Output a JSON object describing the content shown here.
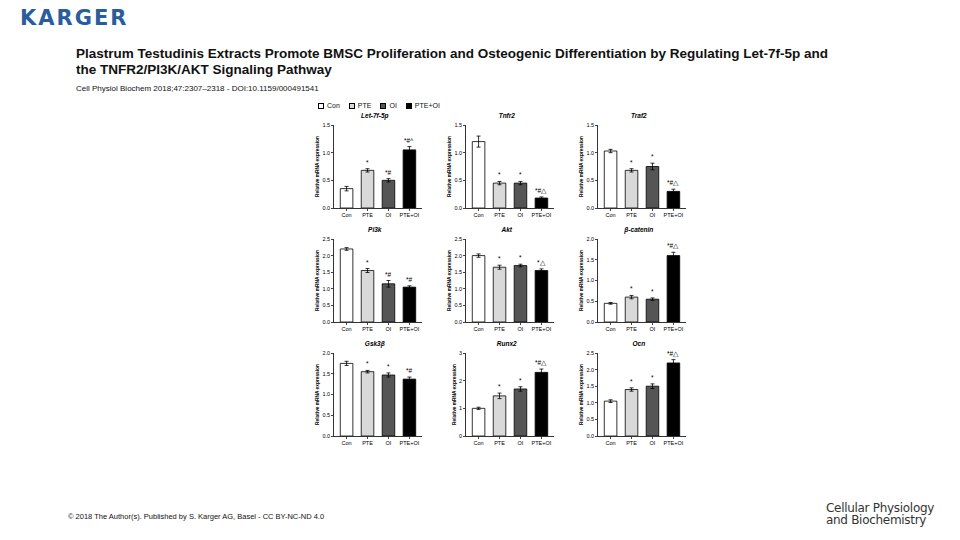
{
  "header": {
    "logo": "KARGER",
    "title": "Plastrum Testudinis Extracts Promote BMSC Proliferation and Osteogenic Differentiation by Regulating Let-7f-5p and the TNFR2/PI3K/AKT Signaling Pathway",
    "citation": "Cell Physiol Biochem 2018;47:2307–2318 - DOI:10.1159/000491541"
  },
  "legend_items": [
    {
      "name": "Con",
      "color": "#ffffff"
    },
    {
      "name": "PTE",
      "color": "#d9d9d9"
    },
    {
      "name": "OI",
      "color": "#555555"
    },
    {
      "name": "PTE+OI",
      "color": "#000000"
    }
  ],
  "chart_data": [
    {
      "type": "bar",
      "title": "Let-7f-5p",
      "ylabel": "Relative mRNA expression",
      "categories": [
        "Con",
        "PTE",
        "OI",
        "PTE+OI"
      ],
      "values": [
        0.35,
        0.68,
        0.5,
        1.05
      ],
      "errors": [
        0.04,
        0.03,
        0.03,
        0.06
      ],
      "annotations": [
        null,
        "*",
        "*#",
        "*#^"
      ],
      "colors": [
        "#ffffff",
        "#d9d9d9",
        "#555555",
        "#000000"
      ],
      "ylim": [
        0,
        1.5
      ],
      "yticks": [
        {
          "value": 0,
          "label": "0.0"
        },
        0.5,
        {
          "value": 1,
          "label": "1.0"
        },
        1.5
      ]
    },
    {
      "type": "bar",
      "title": "Tnfr2",
      "ylabel": "Relative mRNA expression",
      "categories": [
        "Con",
        "PTE",
        "OI",
        "PTE+OI"
      ],
      "values": [
        1.2,
        0.45,
        0.45,
        0.18
      ],
      "errors": [
        0.1,
        0.03,
        0.03,
        0.02
      ],
      "annotations": [
        null,
        "*",
        "*",
        "*#△"
      ],
      "colors": [
        "#ffffff",
        "#d9d9d9",
        "#555555",
        "#000000"
      ],
      "ylim": [
        0,
        1.5
      ],
      "yticks": [
        {
          "value": 0,
          "label": "0.0"
        },
        0.5,
        {
          "value": 1,
          "label": "1.0"
        },
        1.5
      ]
    },
    {
      "type": "bar",
      "title": "Traf2",
      "ylabel": "Relative mRNA expression",
      "categories": [
        "Con",
        "PTE",
        "OI",
        "PTE+OI"
      ],
      "values": [
        1.03,
        0.68,
        0.75,
        0.3
      ],
      "errors": [
        0.03,
        0.03,
        0.06,
        0.04
      ],
      "annotations": [
        null,
        "*",
        "*",
        "*#△"
      ],
      "colors": [
        "#ffffff",
        "#d9d9d9",
        "#555555",
        "#000000"
      ],
      "ylim": [
        0,
        1.5
      ],
      "yticks": [
        {
          "value": 0,
          "label": "0.0"
        },
        0.5,
        {
          "value": 1,
          "label": "1.0"
        },
        1.5
      ]
    },
    {
      "type": "bar",
      "title": "Pi3k",
      "ylabel": "Relative mRNA expression",
      "categories": [
        "Con",
        "PTE",
        "OI",
        "PTE+OI"
      ],
      "values": [
        2.2,
        1.55,
        1.15,
        1.05
      ],
      "errors": [
        0.04,
        0.06,
        0.1,
        0.04
      ],
      "annotations": [
        null,
        "*",
        "*#",
        "*#"
      ],
      "colors": [
        "#ffffff",
        "#d9d9d9",
        "#555555",
        "#000000"
      ],
      "ylim": [
        0,
        2.5
      ],
      "yticks": [
        {
          "value": 0,
          "label": "0.0"
        },
        0.5,
        {
          "value": 1,
          "label": "1.0"
        },
        1.5,
        {
          "value": 2,
          "label": "2.0"
        },
        2.5
      ]
    },
    {
      "type": "bar",
      "title": "Akt",
      "ylabel": "Relative mRNA expression",
      "categories": [
        "Con",
        "PTE",
        "OI",
        "PTE+OI"
      ],
      "values": [
        2.0,
        1.65,
        1.7,
        1.55
      ],
      "errors": [
        0.05,
        0.06,
        0.04,
        0.05
      ],
      "annotations": [
        null,
        "*",
        "*",
        "*△"
      ],
      "colors": [
        "#ffffff",
        "#d9d9d9",
        "#555555",
        "#000000"
      ],
      "ylim": [
        0,
        2.5
      ],
      "yticks": [
        {
          "value": 0,
          "label": "0.0"
        },
        0.5,
        {
          "value": 1,
          "label": "1.0"
        },
        1.5,
        {
          "value": 2,
          "label": "2.0"
        },
        2.5
      ]
    },
    {
      "type": "bar",
      "title": "β-catenin",
      "ylabel": "Relative mRNA expression",
      "categories": [
        "Con",
        "PTE",
        "OI",
        "PTE+OI"
      ],
      "values": [
        0.45,
        0.6,
        0.55,
        1.6
      ],
      "errors": [
        0.02,
        0.04,
        0.03,
        0.08
      ],
      "annotations": [
        null,
        "*",
        "*",
        "*#△"
      ],
      "colors": [
        "#ffffff",
        "#d9d9d9",
        "#555555",
        "#000000"
      ],
      "ylim": [
        0,
        2
      ],
      "yticks": [
        {
          "value": 0,
          "label": "0.0"
        },
        0.5,
        {
          "value": 1,
          "label": "1.0"
        },
        1.5,
        {
          "value": 2,
          "label": "2.0"
        }
      ]
    },
    {
      "type": "bar",
      "title": "Gsk3β",
      "ylabel": "Relative mRNA expression",
      "categories": [
        "Con",
        "PTE",
        "OI",
        "PTE+OI"
      ],
      "values": [
        1.75,
        1.55,
        1.47,
        1.37
      ],
      "errors": [
        0.05,
        0.03,
        0.05,
        0.05
      ],
      "annotations": [
        null,
        "*",
        "*",
        "*#"
      ],
      "colors": [
        "#ffffff",
        "#d9d9d9",
        "#555555",
        "#000000"
      ],
      "ylim": [
        0,
        2
      ],
      "yticks": [
        {
          "value": 0,
          "label": "0.0"
        },
        0.5,
        {
          "value": 1,
          "label": "1.0"
        },
        1.5,
        {
          "value": 2,
          "label": "2.0"
        }
      ]
    },
    {
      "type": "bar",
      "title": "Runx2",
      "ylabel": "Relative mRNA expression",
      "categories": [
        "Con",
        "PTE",
        "OI",
        "PTE+OI"
      ],
      "values": [
        1.0,
        1.45,
        1.7,
        2.3
      ],
      "errors": [
        0.04,
        0.1,
        0.08,
        0.12
      ],
      "annotations": [
        null,
        "*",
        "*",
        "*#△"
      ],
      "colors": [
        "#ffffff",
        "#d9d9d9",
        "#555555",
        "#000000"
      ],
      "ylim": [
        0,
        3
      ],
      "yticks": [
        0,
        1,
        2,
        3
      ]
    },
    {
      "type": "bar",
      "title": "Ocn",
      "ylabel": "Relative mRNA expression",
      "categories": [
        "Con",
        "PTE",
        "OI",
        "PTE+OI"
      ],
      "values": [
        1.05,
        1.4,
        1.5,
        2.2
      ],
      "errors": [
        0.04,
        0.05,
        0.07,
        0.1
      ],
      "annotations": [
        null,
        "*",
        "*",
        "*#△"
      ],
      "colors": [
        "#ffffff",
        "#d9d9d9",
        "#555555",
        "#000000"
      ],
      "ylim": [
        0,
        2.5
      ],
      "yticks": [
        {
          "value": 0,
          "label": "0.0"
        },
        0.5,
        {
          "value": 1,
          "label": "1.0"
        },
        1.5,
        {
          "value": 2,
          "label": "2.0"
        },
        2.5
      ]
    }
  ],
  "footer": {
    "copyright": "© 2018 The Author(s). Published by S. Karger AG, Basel - CC BY-NC-ND 4.0",
    "journal": [
      "Cellular Physiology",
      "and Biochemistry"
    ]
  }
}
